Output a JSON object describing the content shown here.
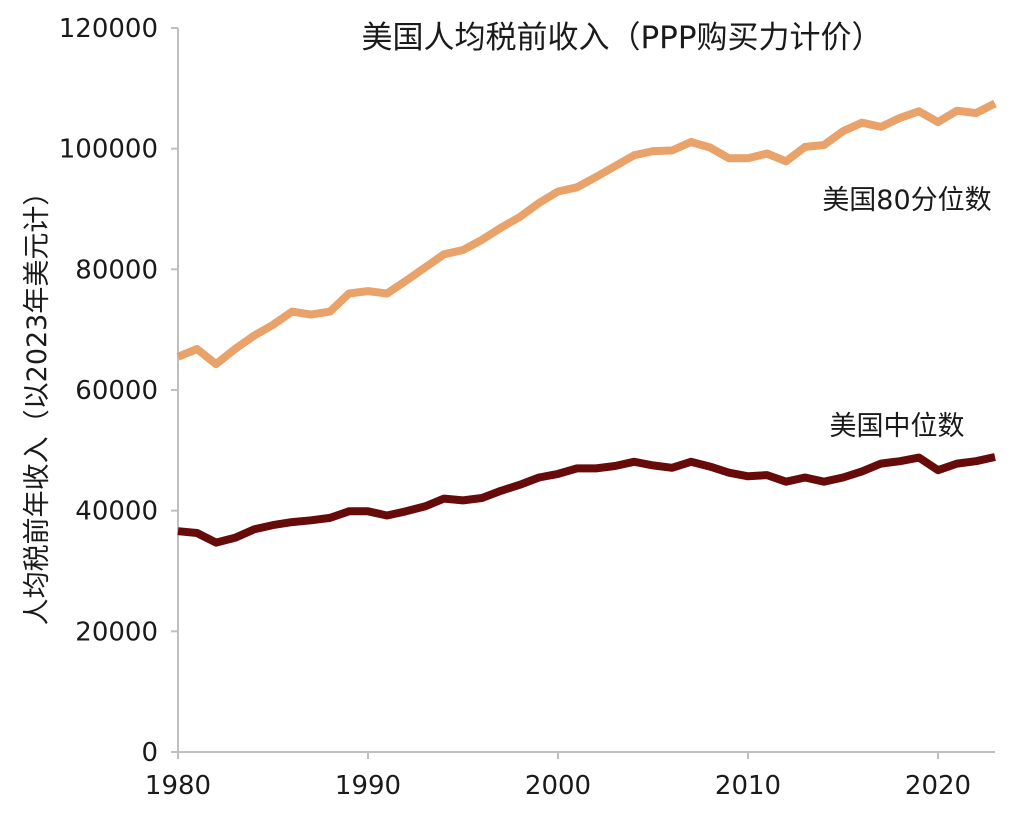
{
  "chart_data": {
    "type": "line",
    "title": "美国人均税前收入（PPP购买力计价）",
    "xlabel": "",
    "ylabel": "人均税前年收入（以2023年美元计）",
    "xlim": [
      1980,
      2023
    ],
    "ylim": [
      0,
      120000
    ],
    "x_ticks": [
      1980,
      1990,
      2000,
      2010,
      2020
    ],
    "y_ticks": [
      0,
      20000,
      40000,
      60000,
      80000,
      100000,
      120000
    ],
    "x": [
      1980,
      1981,
      1982,
      1983,
      1984,
      1985,
      1986,
      1987,
      1988,
      1989,
      1990,
      1991,
      1992,
      1993,
      1994,
      1995,
      1996,
      1997,
      1998,
      1999,
      2000,
      2001,
      2002,
      2003,
      2004,
      2005,
      2006,
      2007,
      2008,
      2009,
      2010,
      2011,
      2012,
      2013,
      2014,
      2015,
      2016,
      2017,
      2018,
      2019,
      2020,
      2021,
      2022,
      2023
    ],
    "series": [
      {
        "name": "美国80分位数",
        "color": "#E8A26A",
        "values": [
          65500,
          66800,
          64300,
          66800,
          69000,
          70800,
          73000,
          72500,
          73000,
          76000,
          76400,
          76000,
          78100,
          80300,
          82500,
          83200,
          84900,
          86900,
          88700,
          91000,
          92900,
          93600,
          95300,
          97100,
          98900,
          99600,
          99700,
          101100,
          100200,
          98400,
          98400,
          99200,
          97900,
          100300,
          100600,
          102900,
          104300,
          103600,
          105100,
          106200,
          104400,
          106300,
          105900,
          107500
        ]
      },
      {
        "name": "美国中位数",
        "color": "#660A0A",
        "values": [
          36600,
          36300,
          34700,
          35500,
          36900,
          37600,
          38100,
          38400,
          38800,
          39900,
          39900,
          39200,
          39900,
          40700,
          42000,
          41700,
          42100,
          43300,
          44300,
          45500,
          46100,
          47000,
          47000,
          47400,
          48100,
          47500,
          47100,
          48100,
          47300,
          46300,
          45700,
          45900,
          44800,
          45500,
          44800,
          45500,
          46500,
          47800,
          48200,
          48800,
          46700,
          47800,
          48200,
          48900
        ]
      }
    ]
  }
}
